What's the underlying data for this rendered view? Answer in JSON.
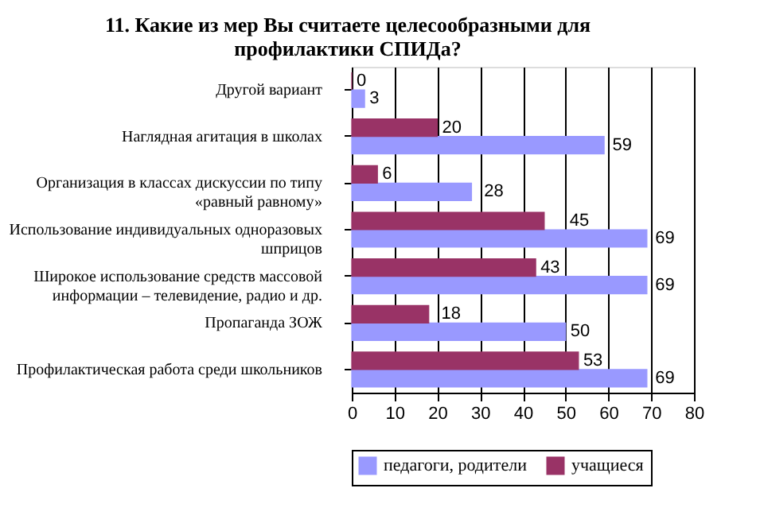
{
  "chart_data": {
    "type": "bar",
    "orientation": "horizontal",
    "title": "11. Какие из мер Вы считаете целесообразными для профилактики СПИДа?",
    "categories": [
      "Другой вариант",
      "Наглядная агитация в школах",
      "Организация в классах дискуссии по типу «равный равному»",
      "Использование индивидуальных одноразовых шприцов",
      "Широкое использование средств массовой информации – телевидение, радио и др.",
      "Пропаганда ЗОЖ",
      "Профилактическая работа среди школьников"
    ],
    "series": [
      {
        "name": "педагоги, родители",
        "color": "#9999ff",
        "values": [
          3,
          59,
          28,
          69,
          69,
          50,
          69
        ]
      },
      {
        "name": "учащиеся",
        "color": "#993366",
        "values": [
          0,
          20,
          6,
          45,
          43,
          18,
          53
        ]
      }
    ],
    "xlim": [
      0,
      80
    ],
    "xticks": [
      0,
      10,
      20,
      30,
      40,
      50,
      60,
      70,
      80
    ],
    "grid": "x",
    "legend": "bottom",
    "data_labels": true
  }
}
